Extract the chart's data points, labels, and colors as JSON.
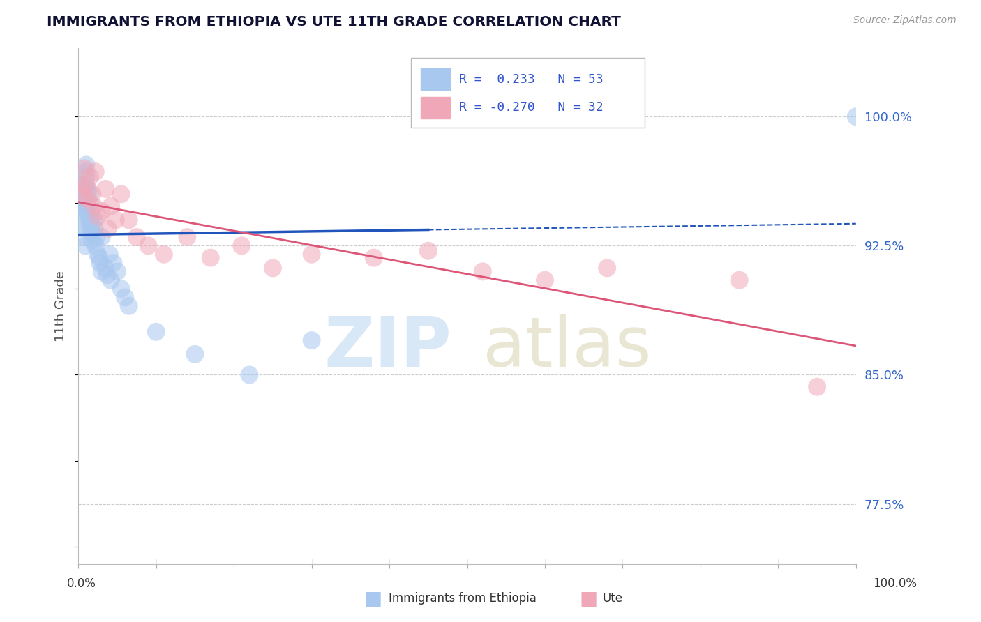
{
  "title": "IMMIGRANTS FROM ETHIOPIA VS UTE 11TH GRADE CORRELATION CHART",
  "ylabel": "11th Grade",
  "source": "Source: ZipAtlas.com",
  "legend_blue_r": "0.233",
  "legend_blue_n": "53",
  "legend_pink_r": "-0.270",
  "legend_pink_n": "32",
  "blue_color": "#A8C8F0",
  "pink_color": "#F0A8B8",
  "trendline_blue": "#2255BB",
  "trendline_pink": "#DD5577",
  "ytick_labels": [
    "100.0%",
    "92.5%",
    "85.0%",
    "77.5%"
  ],
  "ytick_vals": [
    1.0,
    0.925,
    0.85,
    0.775
  ],
  "xlim": [
    0.0,
    1.0
  ],
  "ylim": [
    0.74,
    1.04
  ],
  "blue_x": [
    0.003,
    0.004,
    0.005,
    0.005,
    0.006,
    0.006,
    0.007,
    0.007,
    0.008,
    0.008,
    0.009,
    0.009,
    0.01,
    0.01,
    0.01,
    0.01,
    0.01,
    0.01,
    0.01,
    0.01,
    0.012,
    0.013,
    0.014,
    0.015,
    0.015,
    0.016,
    0.016,
    0.017,
    0.018,
    0.018,
    0.02,
    0.021,
    0.022,
    0.023,
    0.025,
    0.027,
    0.028,
    0.03,
    0.03,
    0.035,
    0.037,
    0.04,
    0.042,
    0.045,
    0.05,
    0.055,
    0.06,
    0.065,
    0.1,
    0.15,
    0.22,
    0.3,
    1.0
  ],
  "blue_y": [
    0.96,
    0.955,
    0.95,
    0.945,
    0.96,
    0.94,
    0.958,
    0.935,
    0.952,
    0.93,
    0.948,
    0.925,
    0.972,
    0.968,
    0.965,
    0.96,
    0.955,
    0.952,
    0.948,
    0.945,
    0.958,
    0.942,
    0.955,
    0.938,
    0.95,
    0.935,
    0.945,
    0.94,
    0.932,
    0.928,
    0.94,
    0.935,
    0.925,
    0.93,
    0.92,
    0.918,
    0.915,
    0.91,
    0.93,
    0.912,
    0.908,
    0.92,
    0.905,
    0.915,
    0.91,
    0.9,
    0.895,
    0.89,
    0.875,
    0.862,
    0.85,
    0.87,
    1.0
  ],
  "pink_x": [
    0.004,
    0.006,
    0.008,
    0.01,
    0.012,
    0.015,
    0.018,
    0.02,
    0.022,
    0.025,
    0.03,
    0.035,
    0.038,
    0.042,
    0.048,
    0.055,
    0.065,
    0.075,
    0.09,
    0.11,
    0.14,
    0.17,
    0.21,
    0.25,
    0.3,
    0.38,
    0.45,
    0.52,
    0.6,
    0.68,
    0.85,
    0.95
  ],
  "pink_y": [
    0.96,
    0.955,
    0.97,
    0.96,
    0.952,
    0.965,
    0.955,
    0.948,
    0.968,
    0.942,
    0.945,
    0.958,
    0.935,
    0.948,
    0.94,
    0.955,
    0.94,
    0.93,
    0.925,
    0.92,
    0.93,
    0.918,
    0.925,
    0.912,
    0.92,
    0.918,
    0.922,
    0.91,
    0.905,
    0.912,
    0.905,
    0.843
  ]
}
